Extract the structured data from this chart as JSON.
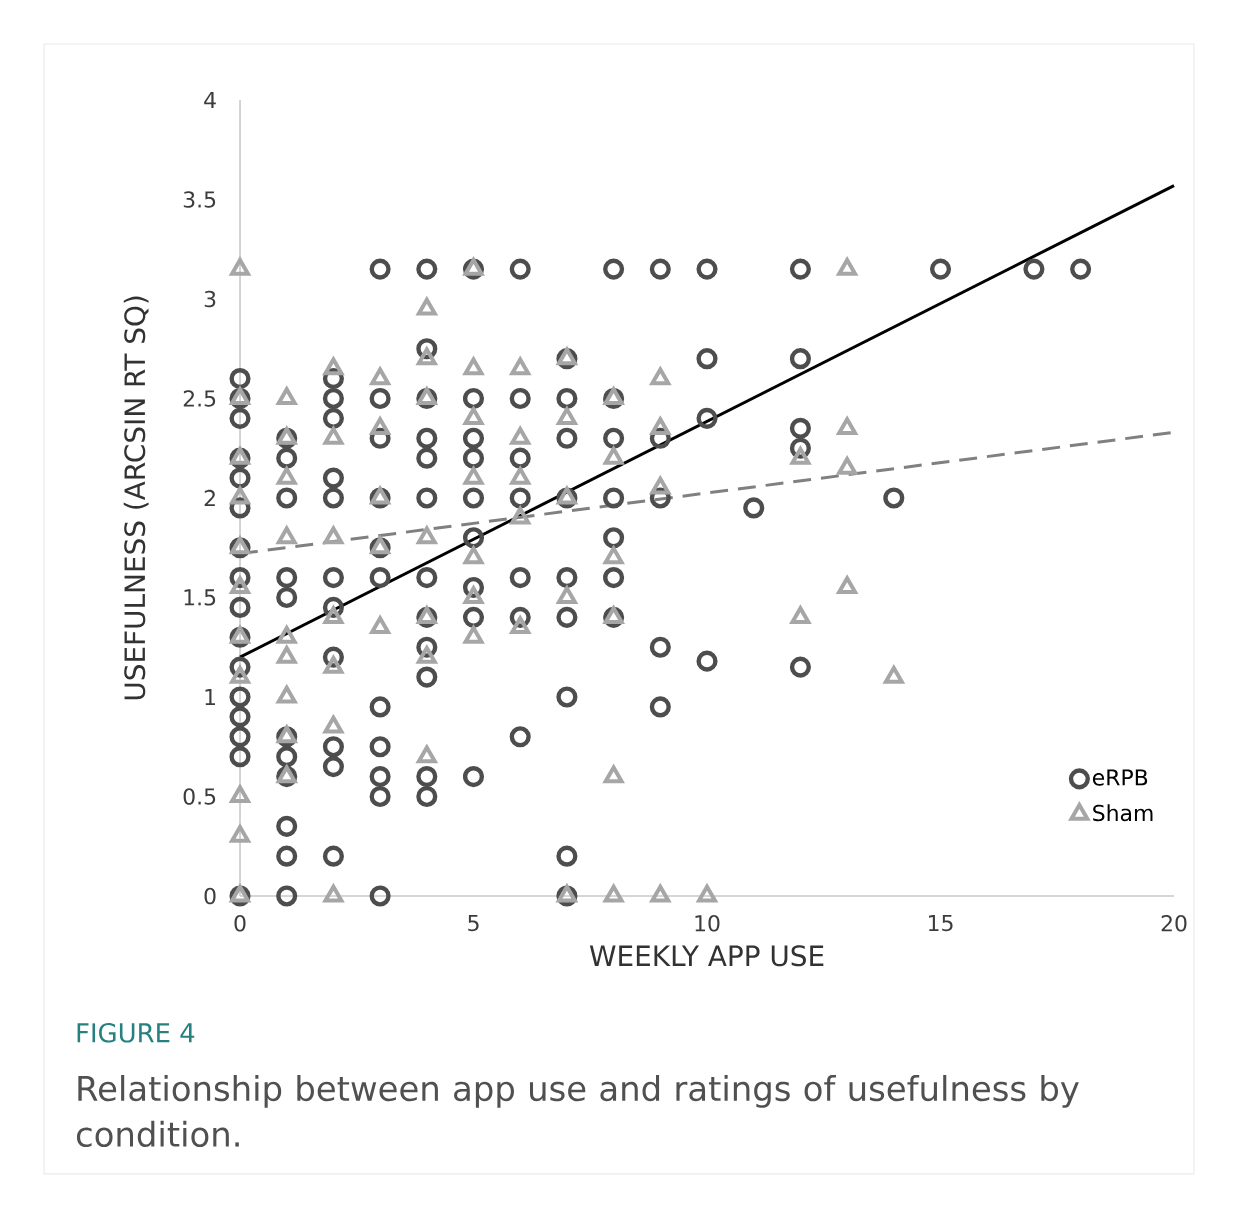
{
  "chart_data": {
    "type": "scatter",
    "xlabel": "WEEKLY APP USE",
    "ylabel": "USEFULNESS (ARCSIN RT SQ)",
    "xlim": [
      0,
      20
    ],
    "ylim": [
      0,
      4
    ],
    "xticks": [
      0,
      5,
      10,
      15,
      20
    ],
    "yticks": [
      0,
      0.5,
      1,
      1.5,
      2,
      2.5,
      3,
      3.5,
      4
    ],
    "grid": false,
    "legend": "bottom right",
    "annotations": [
      "FIGURE 4",
      "Relationship between app use and ratings of usefulness by condition."
    ],
    "series": [
      {
        "name": "eRPB",
        "marker": "circle",
        "color": "#4d4d4d",
        "x": [
          0,
          0,
          0,
          0,
          0,
          0,
          0,
          0,
          0,
          0,
          0,
          0,
          0,
          0,
          0,
          0,
          1,
          1,
          1,
          1,
          1,
          1,
          1,
          1,
          1,
          1,
          1,
          2,
          2,
          2,
          2,
          2,
          2,
          2,
          2,
          2,
          2,
          2,
          3,
          3,
          3,
          3,
          3,
          3,
          3,
          3,
          3,
          3,
          3,
          4,
          4,
          4,
          4,
          4,
          4,
          4,
          4,
          4,
          4,
          4,
          4,
          5,
          5,
          5,
          5,
          5,
          5,
          5,
          5,
          5,
          6,
          6,
          6,
          6,
          6,
          6,
          6,
          7,
          7,
          7,
          7,
          7,
          7,
          7,
          7,
          7,
          8,
          8,
          8,
          8,
          8,
          8,
          8,
          9,
          9,
          9,
          9,
          9,
          10,
          10,
          10,
          10,
          11,
          12,
          12,
          12,
          12,
          12,
          14,
          15,
          17,
          18
        ],
        "values": [
          0,
          0.7,
          0.8,
          0.9,
          1.0,
          1.15,
          1.3,
          1.45,
          1.6,
          1.75,
          1.95,
          2.1,
          2.2,
          2.4,
          2.5,
          2.6,
          0,
          0.2,
          0.35,
          0.6,
          0.7,
          0.8,
          1.5,
          1.6,
          2.0,
          2.2,
          2.3,
          0.2,
          0.65,
          0.75,
          1.2,
          1.45,
          1.6,
          2.0,
          2.1,
          2.4,
          2.5,
          2.6,
          0,
          0.5,
          0.6,
          0.75,
          0.95,
          1.6,
          1.75,
          2.0,
          2.3,
          2.5,
          3.15,
          0.5,
          0.6,
          1.1,
          1.25,
          1.4,
          1.6,
          2.0,
          2.2,
          2.3,
          2.5,
          2.75,
          3.15,
          0.6,
          1.4,
          1.55,
          1.8,
          2.0,
          2.2,
          2.3,
          2.5,
          3.15,
          0.8,
          1.4,
          1.6,
          2.0,
          2.2,
          2.5,
          3.15,
          0,
          0.2,
          1.0,
          1.4,
          1.6,
          2.0,
          2.3,
          2.5,
          2.7,
          1.4,
          1.6,
          1.8,
          2.0,
          2.3,
          2.5,
          3.15,
          0.95,
          1.25,
          2.0,
          2.3,
          3.15,
          1.18,
          2.4,
          2.7,
          3.15,
          1.95,
          1.15,
          2.25,
          2.35,
          2.7,
          3.15,
          2.0,
          3.15,
          3.15,
          3.15
        ]
      },
      {
        "name": "Sham",
        "marker": "triangle",
        "color": "#a6a6a6",
        "x": [
          0,
          0,
          0,
          0,
          0,
          0,
          0,
          0,
          0,
          0,
          0,
          1,
          1,
          1,
          1,
          1,
          1,
          1,
          1,
          1,
          2,
          2,
          2,
          2,
          2,
          2,
          2,
          3,
          3,
          3,
          3,
          3,
          4,
          4,
          4,
          4,
          4,
          4,
          4,
          5,
          5,
          5,
          5,
          5,
          5,
          5,
          6,
          6,
          6,
          6,
          6,
          7,
          7,
          7,
          7,
          7,
          8,
          8,
          8,
          8,
          8,
          8,
          9,
          9,
          9,
          9,
          10,
          12,
          12,
          13,
          13,
          13,
          13,
          14
        ],
        "values": [
          0,
          0.3,
          0.5,
          1.1,
          1.3,
          1.55,
          1.75,
          2.0,
          2.2,
          2.5,
          3.15,
          0.6,
          0.8,
          1.0,
          1.2,
          1.3,
          1.8,
          2.1,
          2.3,
          2.5,
          0,
          0.85,
          1.15,
          1.4,
          1.8,
          2.3,
          2.65,
          1.35,
          1.75,
          2.0,
          2.35,
          2.6,
          0.7,
          1.2,
          1.4,
          1.8,
          2.5,
          2.7,
          2.95,
          1.3,
          1.5,
          1.7,
          2.1,
          2.4,
          2.65,
          3.15,
          1.35,
          1.9,
          2.1,
          2.3,
          2.65,
          0,
          1.5,
          2.0,
          2.4,
          2.7,
          0,
          0.6,
          1.4,
          1.7,
          2.2,
          2.5,
          0,
          2.05,
          2.35,
          2.6,
          0,
          1.4,
          2.2,
          1.55,
          2.15,
          2.35,
          3.15,
          1.1
        ]
      },
      {
        "type": "line",
        "marker": "none",
        "line_style": "solid",
        "color": "#000000",
        "x": [
          0,
          20
        ],
        "values": [
          1.2,
          3.57
        ]
      },
      {
        "type": "line",
        "marker": "none",
        "line_style": "dashed",
        "color": "#808080",
        "x": [
          0,
          20
        ],
        "values": [
          1.72,
          2.33
        ]
      }
    ]
  }
}
